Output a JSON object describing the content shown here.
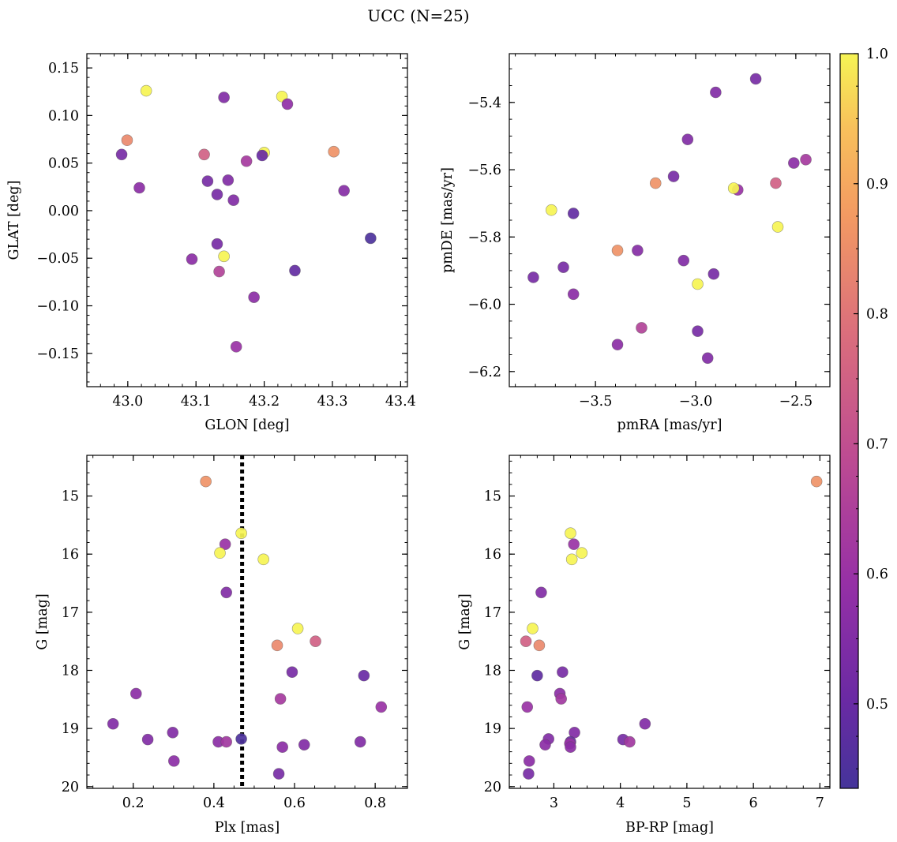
{
  "figure": {
    "title": "UCC (N=25)",
    "colorbar_ticks": [
      "0.5",
      "0.6",
      "0.7",
      "0.8",
      "0.9",
      "1.0"
    ]
  },
  "chart_data": [
    {
      "type": "scatter",
      "xlabel": "GLON [deg]",
      "ylabel": "GLAT [deg]",
      "xlim": [
        42.94,
        43.41
      ],
      "ylim": [
        -0.185,
        0.165
      ],
      "xticks": [
        "43.0",
        "43.1",
        "43.2",
        "43.3",
        "43.4"
      ],
      "yticks": [
        "-0.15",
        "-0.10",
        "-0.05",
        "0.00",
        "0.05",
        "0.10",
        "0.15"
      ],
      "grid": false,
      "points": [
        {
          "x": 43.027,
          "y": 0.126,
          "c": 1.0
        },
        {
          "x": 43.141,
          "y": 0.119,
          "c": 0.55
        },
        {
          "x": 43.226,
          "y": 0.12,
          "c": 1.0
        },
        {
          "x": 43.234,
          "y": 0.112,
          "c": 0.58
        },
        {
          "x": 42.999,
          "y": 0.074,
          "c": 0.84
        },
        {
          "x": 43.302,
          "y": 0.062,
          "c": 0.86
        },
        {
          "x": 43.2,
          "y": 0.061,
          "c": 1.0
        },
        {
          "x": 42.991,
          "y": 0.059,
          "c": 0.53
        },
        {
          "x": 43.112,
          "y": 0.059,
          "c": 0.75
        },
        {
          "x": 43.197,
          "y": 0.058,
          "c": 0.5
        },
        {
          "x": 43.174,
          "y": 0.052,
          "c": 0.63
        },
        {
          "x": 43.147,
          "y": 0.032,
          "c": 0.55
        },
        {
          "x": 43.117,
          "y": 0.031,
          "c": 0.53
        },
        {
          "x": 43.017,
          "y": 0.024,
          "c": 0.57
        },
        {
          "x": 43.317,
          "y": 0.021,
          "c": 0.56
        },
        {
          "x": 43.131,
          "y": 0.017,
          "c": 0.53
        },
        {
          "x": 43.155,
          "y": 0.011,
          "c": 0.55
        },
        {
          "x": 43.356,
          "y": -0.029,
          "c": 0.45
        },
        {
          "x": 43.131,
          "y": -0.035,
          "c": 0.53
        },
        {
          "x": 43.141,
          "y": -0.048,
          "c": 1.0
        },
        {
          "x": 43.094,
          "y": -0.051,
          "c": 0.57
        },
        {
          "x": 43.245,
          "y": -0.063,
          "c": 0.49
        },
        {
          "x": 43.134,
          "y": -0.064,
          "c": 0.66
        },
        {
          "x": 43.185,
          "y": -0.091,
          "c": 0.57
        },
        {
          "x": 43.159,
          "y": -0.143,
          "c": 0.6
        }
      ]
    },
    {
      "type": "scatter",
      "xlabel": "pmRA [mas/yr]",
      "ylabel": "pmDE [mas/yr]",
      "xlim": [
        -3.93,
        -2.33
      ],
      "ylim": [
        -6.245,
        -5.255
      ],
      "xticks": [
        "-3.5",
        "-3.0",
        "-2.5"
      ],
      "yticks": [
        "-6.2",
        "-6.0",
        "-5.8",
        "-5.6",
        "-5.4"
      ],
      "grid": false,
      "points": [
        {
          "x": -2.7,
          "y": -5.33,
          "c": 0.53
        },
        {
          "x": -2.9,
          "y": -5.37,
          "c": 0.55
        },
        {
          "x": -3.04,
          "y": -5.51,
          "c": 0.55
        },
        {
          "x": -2.51,
          "y": -5.58,
          "c": 0.57
        },
        {
          "x": -2.45,
          "y": -5.57,
          "c": 0.63
        },
        {
          "x": -3.11,
          "y": -5.62,
          "c": 0.53
        },
        {
          "x": -3.2,
          "y": -5.64,
          "c": 0.86
        },
        {
          "x": -2.6,
          "y": -5.64,
          "c": 0.75
        },
        {
          "x": -2.79,
          "y": -5.66,
          "c": 0.6
        },
        {
          "x": -2.81,
          "y": -5.655,
          "c": 1.0
        },
        {
          "x": -3.72,
          "y": -5.72,
          "c": 1.0
        },
        {
          "x": -3.61,
          "y": -5.73,
          "c": 0.49
        },
        {
          "x": -2.59,
          "y": -5.77,
          "c": 1.0
        },
        {
          "x": -3.39,
          "y": -5.84,
          "c": 0.86
        },
        {
          "x": -3.29,
          "y": -5.84,
          "c": 0.56
        },
        {
          "x": -3.06,
          "y": -5.87,
          "c": 0.55
        },
        {
          "x": -3.66,
          "y": -5.89,
          "c": 0.53
        },
        {
          "x": -3.81,
          "y": -5.92,
          "c": 0.53
        },
        {
          "x": -2.91,
          "y": -5.91,
          "c": 0.53
        },
        {
          "x": -2.99,
          "y": -5.94,
          "c": 1.0
        },
        {
          "x": -3.61,
          "y": -5.97,
          "c": 0.57
        },
        {
          "x": -3.27,
          "y": -6.07,
          "c": 0.66
        },
        {
          "x": -2.99,
          "y": -6.08,
          "c": 0.53
        },
        {
          "x": -3.39,
          "y": -6.12,
          "c": 0.57
        },
        {
          "x": -2.94,
          "y": -6.16,
          "c": 0.55
        }
      ]
    },
    {
      "type": "scatter",
      "xlabel": "Plx [mas]",
      "ylabel": "G [mag]",
      "xlim": [
        0.085,
        0.88
      ],
      "ylim": [
        20.03,
        14.3
      ],
      "y_inverted": true,
      "xticks": [
        "0.2",
        "0.4",
        "0.6",
        "0.8"
      ],
      "yticks": [
        "15",
        "16",
        "17",
        "18",
        "19",
        "20"
      ],
      "vline": 0.47,
      "grid": false,
      "points": [
        {
          "x": 0.38,
          "y": 14.75,
          "c": 0.86
        },
        {
          "x": 0.468,
          "y": 15.64,
          "c": 1.0
        },
        {
          "x": 0.428,
          "y": 15.83,
          "c": 0.6
        },
        {
          "x": 0.415,
          "y": 15.98,
          "c": 1.0
        },
        {
          "x": 0.523,
          "y": 16.09,
          "c": 1.0
        },
        {
          "x": 0.431,
          "y": 16.66,
          "c": 0.55
        },
        {
          "x": 0.608,
          "y": 17.28,
          "c": 1.0
        },
        {
          "x": 0.652,
          "y": 17.5,
          "c": 0.75
        },
        {
          "x": 0.557,
          "y": 17.57,
          "c": 0.84
        },
        {
          "x": 0.594,
          "y": 18.03,
          "c": 0.53
        },
        {
          "x": 0.772,
          "y": 18.09,
          "c": 0.5
        },
        {
          "x": 0.207,
          "y": 18.4,
          "c": 0.57
        },
        {
          "x": 0.565,
          "y": 18.49,
          "c": 0.63
        },
        {
          "x": 0.815,
          "y": 18.63,
          "c": 0.6
        },
        {
          "x": 0.15,
          "y": 18.92,
          "c": 0.55
        },
        {
          "x": 0.298,
          "y": 19.07,
          "c": 0.55
        },
        {
          "x": 0.468,
          "y": 19.18,
          "c": 0.45
        },
        {
          "x": 0.236,
          "y": 19.19,
          "c": 0.55
        },
        {
          "x": 0.411,
          "y": 19.23,
          "c": 0.57
        },
        {
          "x": 0.431,
          "y": 19.23,
          "c": 0.62
        },
        {
          "x": 0.763,
          "y": 19.23,
          "c": 0.55
        },
        {
          "x": 0.624,
          "y": 19.28,
          "c": 0.55
        },
        {
          "x": 0.57,
          "y": 19.32,
          "c": 0.57
        },
        {
          "x": 0.301,
          "y": 19.56,
          "c": 0.57
        },
        {
          "x": 0.561,
          "y": 19.78,
          "c": 0.53
        }
      ]
    },
    {
      "type": "scatter",
      "xlabel": "BP-RP [mag]",
      "ylabel": "G [mag]",
      "xlim": [
        2.33,
        7.15
      ],
      "ylim": [
        20.03,
        14.3
      ],
      "y_inverted": true,
      "xticks": [
        "3",
        "4",
        "5",
        "6",
        "7"
      ],
      "yticks": [
        "15",
        "16",
        "17",
        "18",
        "19",
        "20"
      ],
      "grid": false,
      "points": [
        {
          "x": 6.95,
          "y": 14.75,
          "c": 0.86
        },
        {
          "x": 3.25,
          "y": 15.64,
          "c": 1.0
        },
        {
          "x": 3.3,
          "y": 15.83,
          "c": 0.6
        },
        {
          "x": 3.42,
          "y": 15.98,
          "c": 1.0
        },
        {
          "x": 3.27,
          "y": 16.09,
          "c": 1.0
        },
        {
          "x": 2.81,
          "y": 16.66,
          "c": 0.55
        },
        {
          "x": 2.68,
          "y": 17.28,
          "c": 1.0
        },
        {
          "x": 2.58,
          "y": 17.5,
          "c": 0.75
        },
        {
          "x": 2.78,
          "y": 17.57,
          "c": 0.84
        },
        {
          "x": 3.13,
          "y": 18.03,
          "c": 0.53
        },
        {
          "x": 2.75,
          "y": 18.09,
          "c": 0.48
        },
        {
          "x": 3.09,
          "y": 18.4,
          "c": 0.57
        },
        {
          "x": 3.11,
          "y": 18.49,
          "c": 0.62
        },
        {
          "x": 2.6,
          "y": 18.63,
          "c": 0.6
        },
        {
          "x": 4.37,
          "y": 18.92,
          "c": 0.55
        },
        {
          "x": 3.31,
          "y": 19.07,
          "c": 0.55
        },
        {
          "x": 2.92,
          "y": 19.18,
          "c": 0.55
        },
        {
          "x": 4.04,
          "y": 19.19,
          "c": 0.53
        },
        {
          "x": 4.14,
          "y": 19.23,
          "c": 0.62
        },
        {
          "x": 3.25,
          "y": 19.23,
          "c": 0.5
        },
        {
          "x": 3.24,
          "y": 19.26,
          "c": 0.6
        },
        {
          "x": 2.87,
          "y": 19.28,
          "c": 0.57
        },
        {
          "x": 3.25,
          "y": 19.32,
          "c": 0.57
        },
        {
          "x": 2.63,
          "y": 19.56,
          "c": 0.57
        },
        {
          "x": 2.62,
          "y": 19.78,
          "c": 0.53
        }
      ]
    }
  ],
  "colorbar": {
    "colormap": "plasma",
    "range": [
      0.435,
      1.0
    ],
    "ticks": [
      0.5,
      0.6,
      0.7,
      0.8,
      0.9,
      1.0
    ]
  },
  "colors": {
    "vline": "#000000",
    "point_edge": "#555555"
  }
}
